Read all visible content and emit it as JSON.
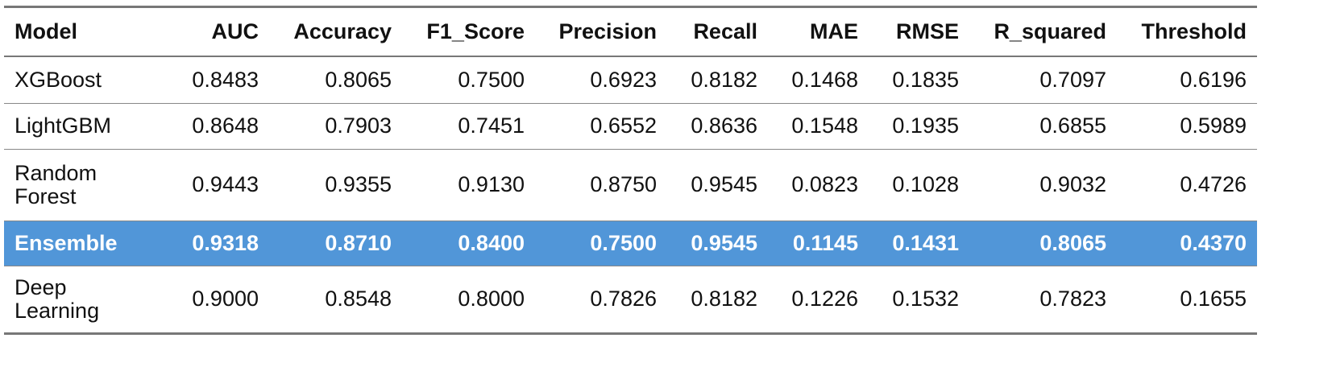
{
  "table": {
    "header": [
      "Model",
      "AUC",
      "Accuracy",
      "F1_Score",
      "Precision",
      "Recall",
      "MAE",
      "RMSE",
      "R_squared",
      "Threshold"
    ],
    "rows": [
      [
        "XGBoost",
        "0.8483",
        "0.8065",
        "0.7500",
        "0.6923",
        "0.8182",
        "0.1468",
        "0.1835",
        "0.7097",
        "0.6196"
      ],
      [
        "LightGBM",
        "0.8648",
        "0.7903",
        "0.7451",
        "0.6552",
        "0.8636",
        "0.1548",
        "0.1935",
        "0.6855",
        "0.5989"
      ],
      [
        "Random Forest",
        "0.9443",
        "0.9355",
        "0.9130",
        "0.8750",
        "0.9545",
        "0.0823",
        "0.1028",
        "0.9032",
        "0.4726"
      ],
      [
        "Ensemble",
        "0.9318",
        "0.8710",
        "0.8400",
        "0.7500",
        "0.9545",
        "0.1145",
        "0.1431",
        "0.8065",
        "0.4370"
      ],
      [
        "Deep Learning",
        "0.9000",
        "0.8548",
        "0.8000",
        "0.7826",
        "0.8182",
        "0.1226",
        "0.1532",
        "0.7823",
        "0.1655"
      ]
    ]
  }
}
